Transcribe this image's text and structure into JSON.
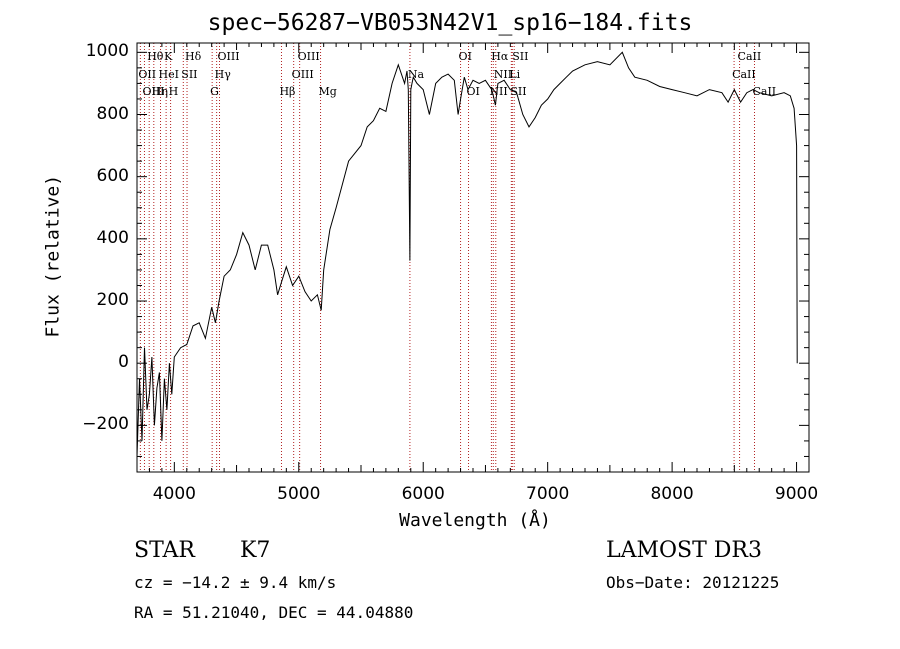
{
  "chart_data": {
    "type": "line",
    "title": "spec−56287−VB053N42V1_sp16−184.fits",
    "xlabel": "Wavelength (Å)",
    "ylabel": "Flux (relative)",
    "xlim": [
      3700,
      9100
    ],
    "ylim": [
      -350,
      1030
    ],
    "x_ticks": [
      4000,
      5000,
      6000,
      7000,
      8000,
      9000
    ],
    "x_tick_labels": [
      "4000",
      "5000",
      "6000",
      "7000",
      "8000",
      "9000"
    ],
    "y_ticks": [
      -200,
      0,
      200,
      400,
      600,
      800,
      1000
    ],
    "y_tick_labels": [
      "−200",
      "0",
      "200",
      "400",
      "600",
      "800",
      "1000"
    ],
    "grid": false,
    "series": [
      {
        "x": [
          3700,
          3720,
          3740,
          3760,
          3780,
          3800,
          3820,
          3840,
          3860,
          3880,
          3900,
          3920,
          3940,
          3960,
          3980,
          4000,
          4050,
          4100,
          4150,
          4200,
          4250,
          4300,
          4330,
          4360,
          4400,
          4450,
          4500,
          4550,
          4600,
          4650,
          4700,
          4750,
          4800,
          4830,
          4860,
          4900,
          4950,
          5000,
          5050,
          5100,
          5150,
          5180,
          5200,
          5250,
          5300,
          5400,
          5500,
          5550,
          5600,
          5650,
          5700,
          5750,
          5800,
          5850,
          5870,
          5880,
          5893,
          5900,
          5910,
          5920,
          5950,
          6000,
          6050,
          6100,
          6150,
          6200,
          6250,
          6280,
          6300,
          6330,
          6360,
          6400,
          6450,
          6500,
          6550,
          6563,
          6580,
          6600,
          6650,
          6700,
          6750,
          6800,
          6850,
          6900,
          6950,
          7000,
          7050,
          7100,
          7150,
          7200,
          7300,
          7400,
          7500,
          7600,
          7650,
          7700,
          7800,
          7900,
          8000,
          8100,
          8200,
          8300,
          8400,
          8450,
          8500,
          8550,
          8600,
          8650,
          8700,
          8800,
          8900,
          8950,
          8980,
          9000,
          9005
        ],
        "y": [
          -300,
          -50,
          -250,
          50,
          -150,
          -100,
          20,
          -200,
          -80,
          -30,
          -250,
          -50,
          -150,
          0,
          -100,
          20,
          50,
          60,
          120,
          130,
          80,
          180,
          130,
          200,
          280,
          300,
          350,
          420,
          380,
          300,
          380,
          380,
          300,
          220,
          260,
          310,
          250,
          280,
          230,
          200,
          220,
          170,
          300,
          430,
          500,
          650,
          700,
          760,
          780,
          820,
          810,
          900,
          960,
          900,
          940,
          880,
          330,
          880,
          900,
          920,
          900,
          880,
          800,
          900,
          920,
          930,
          910,
          800,
          850,
          920,
          880,
          910,
          900,
          910,
          880,
          860,
          830,
          900,
          910,
          880,
          870,
          800,
          760,
          790,
          830,
          850,
          880,
          900,
          920,
          940,
          960,
          970,
          960,
          1000,
          950,
          920,
          910,
          890,
          880,
          870,
          860,
          880,
          870,
          840,
          880,
          840,
          870,
          880,
          870,
          860,
          870,
          860,
          820,
          700,
          0
        ]
      }
    ],
    "line_markers": [
      {
        "name": "Hθ",
        "x": 3798,
        "row": 0
      },
      {
        "name": "K",
        "x": 3934,
        "row": 0
      },
      {
        "name": "Hδ",
        "x": 4102,
        "row": 0
      },
      {
        "name": "OIII",
        "x": 4363,
        "row": 0
      },
      {
        "name": "OIII",
        "x": 5007,
        "row": 0
      },
      {
        "name": "OI",
        "x": 6300,
        "row": 0
      },
      {
        "name": "Hα",
        "x": 6563,
        "row": 0
      },
      {
        "name": "SII",
        "x": 6731,
        "row": 0
      },
      {
        "name": "CaII",
        "x": 8542,
        "row": 0
      },
      {
        "name": "OII",
        "x": 3727,
        "row": 1
      },
      {
        "name": "HeI",
        "x": 3889,
        "row": 1
      },
      {
        "name": "SII",
        "x": 4072,
        "row": 1
      },
      {
        "name": "Hγ",
        "x": 4340,
        "row": 1
      },
      {
        "name": "OIII",
        "x": 4959,
        "row": 1
      },
      {
        "name": "Na",
        "x": 5893,
        "row": 1
      },
      {
        "name": "NII",
        "x": 6583,
        "row": 1
      },
      {
        "name": "Li",
        "x": 6708,
        "row": 1
      },
      {
        "name": "CaII",
        "x": 8498,
        "row": 1
      },
      {
        "name": "OIII",
        "x": 3760,
        "row": 2
      },
      {
        "name": "Hη",
        "x": 3835,
        "row": 2
      },
      {
        "name": "H",
        "x": 3970,
        "row": 2
      },
      {
        "name": "G",
        "x": 4304,
        "row": 2
      },
      {
        "name": "Hβ",
        "x": 4861,
        "row": 2
      },
      {
        "name": "Mg",
        "x": 5175,
        "row": 2
      },
      {
        "name": "OI",
        "x": 6364,
        "row": 2
      },
      {
        "name": "NII",
        "x": 6548,
        "row": 2
      },
      {
        "name": "SII",
        "x": 6716,
        "row": 2
      },
      {
        "name": "CaII",
        "x": 8662,
        "row": 2
      }
    ]
  },
  "info": {
    "object_class": "STAR",
    "subclass": "K7",
    "survey": "LAMOST DR3",
    "cz": "cz = −14.2 ± 9.4 km/s",
    "obs_date": "Obs−Date: 20121225",
    "coords": "RA =  51.21040, DEC =  44.04880"
  },
  "colors": {
    "spectrum": "#000000",
    "marker_line": "#b22222",
    "axes": "#000000"
  }
}
